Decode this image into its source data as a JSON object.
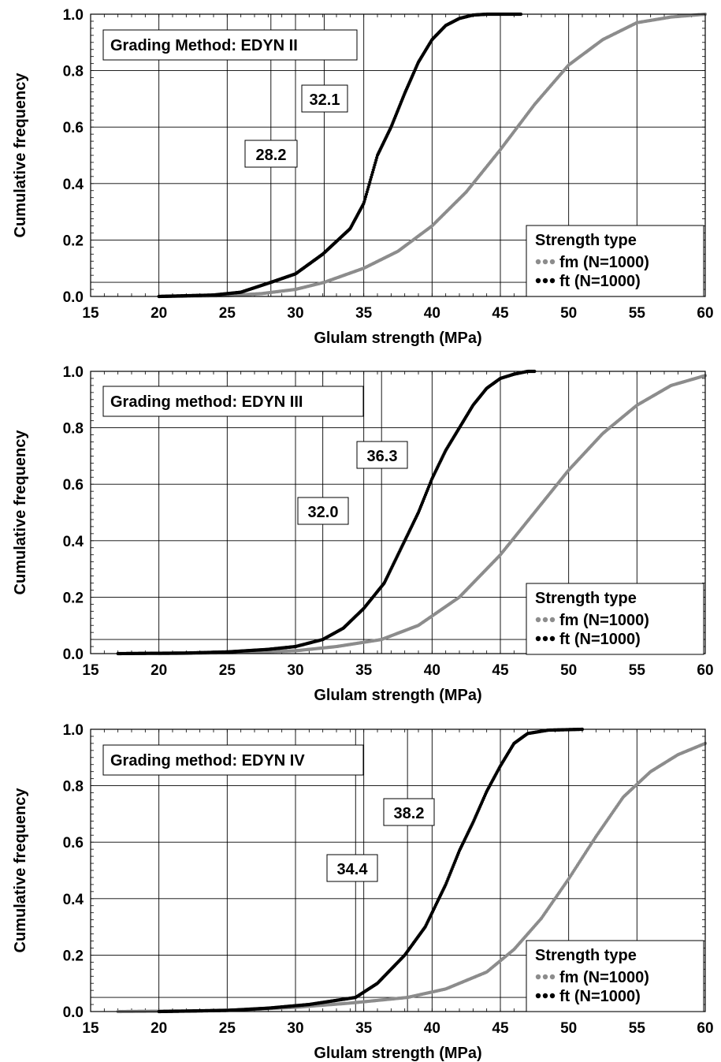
{
  "chart_data": [
    {
      "type": "line",
      "panel_label": "Grading Method: EDYN II",
      "xlabel": "Glulam strength (MPa)",
      "ylabel": "Cumulative frequency",
      "xlim": [
        15,
        60
      ],
      "ylim": [
        0,
        1
      ],
      "x_ticks": [
        "15",
        "20",
        "25",
        "30",
        "35",
        "40",
        "45",
        "50",
        "55",
        "60"
      ],
      "y_ticks": [
        "0.0",
        "0.2",
        "0.4",
        "0.6",
        "0.8",
        "1.0"
      ],
      "grid": true,
      "reference_line_y": 0.05,
      "legend": {
        "title": "Strength type",
        "placement": "bottom-right"
      },
      "annotations": [
        {
          "text": "32.1",
          "x": 32.1,
          "y": 0.7
        },
        {
          "text": "28.2",
          "x": 28.2,
          "y": 0.5
        }
      ],
      "fifth_percentile_lines": [
        28.2,
        32.1
      ],
      "series": [
        {
          "name": "fm (N=1000)",
          "color": "#8c8c8c",
          "points": [
            [
              20.0,
              0.0
            ],
            [
              25.0,
              0.003
            ],
            [
              27.5,
              0.01
            ],
            [
              30.0,
              0.025
            ],
            [
              32.1,
              0.05
            ],
            [
              35.0,
              0.1
            ],
            [
              37.5,
              0.16
            ],
            [
              40.0,
              0.25
            ],
            [
              42.5,
              0.37
            ],
            [
              45.0,
              0.52
            ],
            [
              47.5,
              0.68
            ],
            [
              50.0,
              0.82
            ],
            [
              52.5,
              0.91
            ],
            [
              55.0,
              0.97
            ],
            [
              57.5,
              0.99
            ],
            [
              60.0,
              1.0
            ]
          ]
        },
        {
          "name": "ft (N=1000)",
          "color": "#000000",
          "points": [
            [
              20.0,
              0.0
            ],
            [
              24.0,
              0.005
            ],
            [
              26.0,
              0.015
            ],
            [
              28.2,
              0.05
            ],
            [
              30.0,
              0.08
            ],
            [
              32.0,
              0.15
            ],
            [
              34.0,
              0.24
            ],
            [
              35.0,
              0.33
            ],
            [
              36.0,
              0.5
            ],
            [
              37.0,
              0.6
            ],
            [
              38.0,
              0.72
            ],
            [
              39.0,
              0.83
            ],
            [
              40.0,
              0.91
            ],
            [
              41.0,
              0.96
            ],
            [
              42.0,
              0.985
            ],
            [
              43.0,
              0.997
            ],
            [
              44.0,
              1.0
            ],
            [
              46.5,
              1.0
            ]
          ]
        }
      ]
    },
    {
      "type": "line",
      "panel_label": "Grading method: EDYN III",
      "xlabel": "Glulam strength (MPa)",
      "ylabel": "Cumulative frequency",
      "xlim": [
        15,
        60
      ],
      "ylim": [
        0,
        1
      ],
      "x_ticks": [
        "15",
        "20",
        "25",
        "30",
        "35",
        "40",
        "45",
        "50",
        "55",
        "60"
      ],
      "y_ticks": [
        "0.0",
        "0.2",
        "0.4",
        "0.6",
        "0.8",
        "1.0"
      ],
      "grid": true,
      "reference_line_y": 0.05,
      "legend": {
        "title": "Strength type",
        "placement": "bottom-right"
      },
      "annotations": [
        {
          "text": "36.3",
          "x": 36.3,
          "y": 0.7
        },
        {
          "text": "32.0",
          "x": 32.0,
          "y": 0.5
        }
      ],
      "fifth_percentile_lines": [
        32.0,
        36.3
      ],
      "series": [
        {
          "name": "fm (N=1000)",
          "color": "#8c8c8c",
          "points": [
            [
              20.0,
              0.0
            ],
            [
              25.0,
              0.003
            ],
            [
              30.0,
              0.01
            ],
            [
              33.0,
              0.025
            ],
            [
              36.3,
              0.05
            ],
            [
              39.0,
              0.1
            ],
            [
              42.0,
              0.2
            ],
            [
              45.0,
              0.35
            ],
            [
              47.5,
              0.5
            ],
            [
              50.0,
              0.65
            ],
            [
              52.5,
              0.78
            ],
            [
              55.0,
              0.88
            ],
            [
              57.5,
              0.95
            ],
            [
              60.0,
              0.985
            ]
          ]
        },
        {
          "name": "ft (N=1000)",
          "color": "#000000",
          "points": [
            [
              17.0,
              0.0
            ],
            [
              22.0,
              0.002
            ],
            [
              25.0,
              0.006
            ],
            [
              28.0,
              0.015
            ],
            [
              30.0,
              0.025
            ],
            [
              32.0,
              0.05
            ],
            [
              33.5,
              0.09
            ],
            [
              35.0,
              0.16
            ],
            [
              36.5,
              0.25
            ],
            [
              38.0,
              0.4
            ],
            [
              39.0,
              0.5
            ],
            [
              40.0,
              0.62
            ],
            [
              41.0,
              0.72
            ],
            [
              42.0,
              0.8
            ],
            [
              43.0,
              0.88
            ],
            [
              44.0,
              0.94
            ],
            [
              45.0,
              0.975
            ],
            [
              46.0,
              0.99
            ],
            [
              47.0,
              1.0
            ],
            [
              47.5,
              1.0
            ]
          ]
        }
      ]
    },
    {
      "type": "line",
      "panel_label": "Grading method: EDYN IV",
      "xlabel": "Glulam strength (MPa)",
      "ylabel": "Cumulative frequency",
      "xlim": [
        15,
        60
      ],
      "ylim": [
        0,
        1
      ],
      "x_ticks": [
        "15",
        "20",
        "25",
        "30",
        "35",
        "40",
        "45",
        "50",
        "55",
        "60"
      ],
      "y_ticks": [
        "0.0",
        "0.2",
        "0.4",
        "0.6",
        "0.8",
        "1.0"
      ],
      "grid": true,
      "reference_line_y": 0.05,
      "legend": {
        "title": "Strength type",
        "placement": "bottom-right"
      },
      "annotations": [
        {
          "text": "38.2",
          "x": 38.2,
          "y": 0.7
        },
        {
          "text": "34.4",
          "x": 34.4,
          "y": 0.5
        }
      ],
      "fifth_percentile_lines": [
        34.4,
        38.2
      ],
      "series": [
        {
          "name": "fm (N=1000)",
          "color": "#8c8c8c",
          "points": [
            [
              17.0,
              0.0
            ],
            [
              22.0,
              0.002
            ],
            [
              26.0,
              0.006
            ],
            [
              30.0,
              0.015
            ],
            [
              34.0,
              0.03
            ],
            [
              38.2,
              0.05
            ],
            [
              41.0,
              0.08
            ],
            [
              44.0,
              0.14
            ],
            [
              46.0,
              0.22
            ],
            [
              48.0,
              0.33
            ],
            [
              50.0,
              0.47
            ],
            [
              52.0,
              0.62
            ],
            [
              54.0,
              0.76
            ],
            [
              56.0,
              0.85
            ],
            [
              58.0,
              0.91
            ],
            [
              60.0,
              0.95
            ]
          ]
        },
        {
          "name": "ft (N=1000)",
          "color": "#000000",
          "points": [
            [
              20.0,
              0.0
            ],
            [
              25.0,
              0.004
            ],
            [
              28.0,
              0.012
            ],
            [
              31.0,
              0.025
            ],
            [
              34.4,
              0.05
            ],
            [
              36.0,
              0.1
            ],
            [
              38.0,
              0.2
            ],
            [
              39.5,
              0.3
            ],
            [
              41.0,
              0.45
            ],
            [
              42.0,
              0.57
            ],
            [
              43.0,
              0.67
            ],
            [
              44.0,
              0.78
            ],
            [
              45.0,
              0.87
            ],
            [
              46.0,
              0.95
            ],
            [
              47.0,
              0.985
            ],
            [
              48.5,
              0.997
            ],
            [
              51.0,
              1.0
            ]
          ]
        }
      ]
    }
  ]
}
